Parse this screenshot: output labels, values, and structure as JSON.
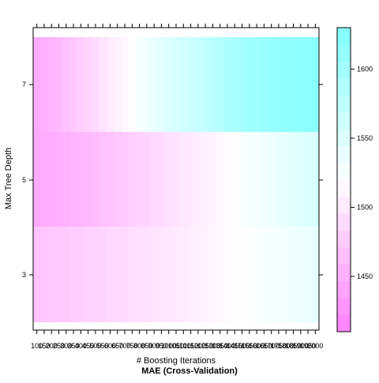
{
  "chart_data": {
    "type": "heatmap",
    "title": "MAE (Cross-Validation)",
    "xlabel": "# Boosting Iterations",
    "ylabel": "Max Tree Depth",
    "x": [
      100,
      150,
      200,
      250,
      300,
      350,
      400,
      450,
      500,
      550,
      600,
      650,
      700,
      750,
      800,
      850,
      900,
      950,
      1000,
      1050,
      1100,
      1150,
      1200,
      1250,
      1300,
      1350,
      1400,
      1450,
      1500,
      1550,
      1600,
      1650,
      1700,
      1750,
      1800,
      1850,
      1900,
      1950,
      2000
    ],
    "x_tick_labels": [
      "100",
      "150",
      "200",
      "250",
      "300",
      "350",
      "400",
      "450",
      "500",
      "550",
      "600",
      "650",
      "700",
      "750",
      "800",
      "850",
      "900",
      "950",
      "1000",
      "1050",
      "1100",
      "1150",
      "1200",
      "1250",
      "1300",
      "1350",
      "1400",
      "1450",
      "1500",
      "1550",
      "1600",
      "1650",
      "1700",
      "1750",
      "1800",
      "1850",
      "1900",
      "1950",
      "2000"
    ],
    "y": [
      3,
      5,
      7
    ],
    "y_tick_labels": [
      "3",
      "5",
      "7"
    ],
    "series": [
      {
        "name": "3",
        "values": [
          1468,
          1470,
          1472,
          1474,
          1475,
          1477,
          1479,
          1481,
          1482,
          1484,
          1486,
          1487,
          1489,
          1491,
          1493,
          1494,
          1496,
          1498,
          1500,
          1502,
          1504,
          1506,
          1508,
          1510,
          1512,
          1514,
          1516,
          1518,
          1520,
          1522,
          1524,
          1526,
          1528,
          1530,
          1532,
          1534,
          1536,
          1538,
          1540
        ]
      },
      {
        "name": "5",
        "values": [
          1446,
          1448,
          1450,
          1452,
          1454,
          1456,
          1458,
          1460,
          1463,
          1466,
          1469,
          1472,
          1475,
          1478,
          1481,
          1484,
          1487,
          1490,
          1493,
          1496,
          1499,
          1502,
          1505,
          1508,
          1511,
          1514,
          1517,
          1520,
          1523,
          1526,
          1529,
          1532,
          1535,
          1538,
          1541,
          1544,
          1547,
          1550,
          1553
        ]
      },
      {
        "name": "7",
        "values": [
          1448,
          1452,
          1456,
          1460,
          1466,
          1472,
          1478,
          1484,
          1490,
          1496,
          1502,
          1508,
          1514,
          1520,
          1526,
          1532,
          1538,
          1544,
          1550,
          1555,
          1560,
          1565,
          1570,
          1575,
          1580,
          1585,
          1590,
          1594,
          1598,
          1602,
          1605,
          1608,
          1611,
          1613,
          1615,
          1617,
          1619,
          1620,
          1622
        ]
      }
    ],
    "colorbar": {
      "range": [
        1410,
        1630
      ],
      "tick_values": [
        1450,
        1500,
        1550,
        1600
      ],
      "tick_labels": [
        "1450",
        "1500",
        "1550",
        "1600"
      ],
      "low_color": "#ff80ff",
      "high_color": "#80ffff"
    },
    "grid": false,
    "legend_position": "right"
  }
}
